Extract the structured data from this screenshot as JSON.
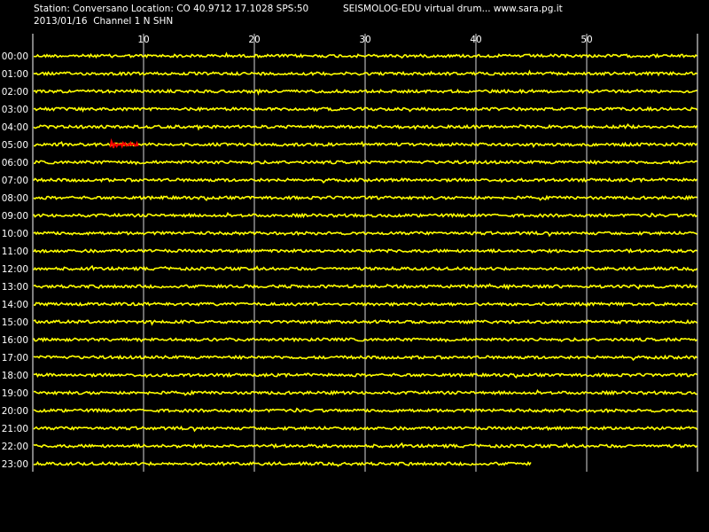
{
  "header": {
    "station_line": "Station: Conversano Location: CO 40.9712 17.1028 SPS:50",
    "date_line": "2013/01/16  Channel 1 N SHN",
    "app_title": "SEISMOLOG-EDU virtual drum... www.sara.pg.it"
  },
  "drum": {
    "minute_ticks": [
      "10",
      "20",
      "30",
      "40",
      "50"
    ],
    "hour_labels": [
      "00:00",
      "01:00",
      "02:00",
      "03:00",
      "04:00",
      "05:00",
      "06:00",
      "07:00",
      "08:00",
      "09:00",
      "10:00",
      "11:00",
      "12:00",
      "13:00",
      "14:00",
      "15:00",
      "16:00",
      "17:00",
      "18:00",
      "19:00",
      "20:00",
      "21:00",
      "22:00",
      "23:00"
    ],
    "last_trace_end_minute": 45,
    "marked_event": {
      "hour_index": 5,
      "start_minute": 7,
      "end_minute": 9.5
    }
  },
  "colors": {
    "background": "#000000",
    "trace": "#ffff00",
    "event_marker": "#ff0000",
    "grid": "#ffffff",
    "text": "#ffffff"
  }
}
